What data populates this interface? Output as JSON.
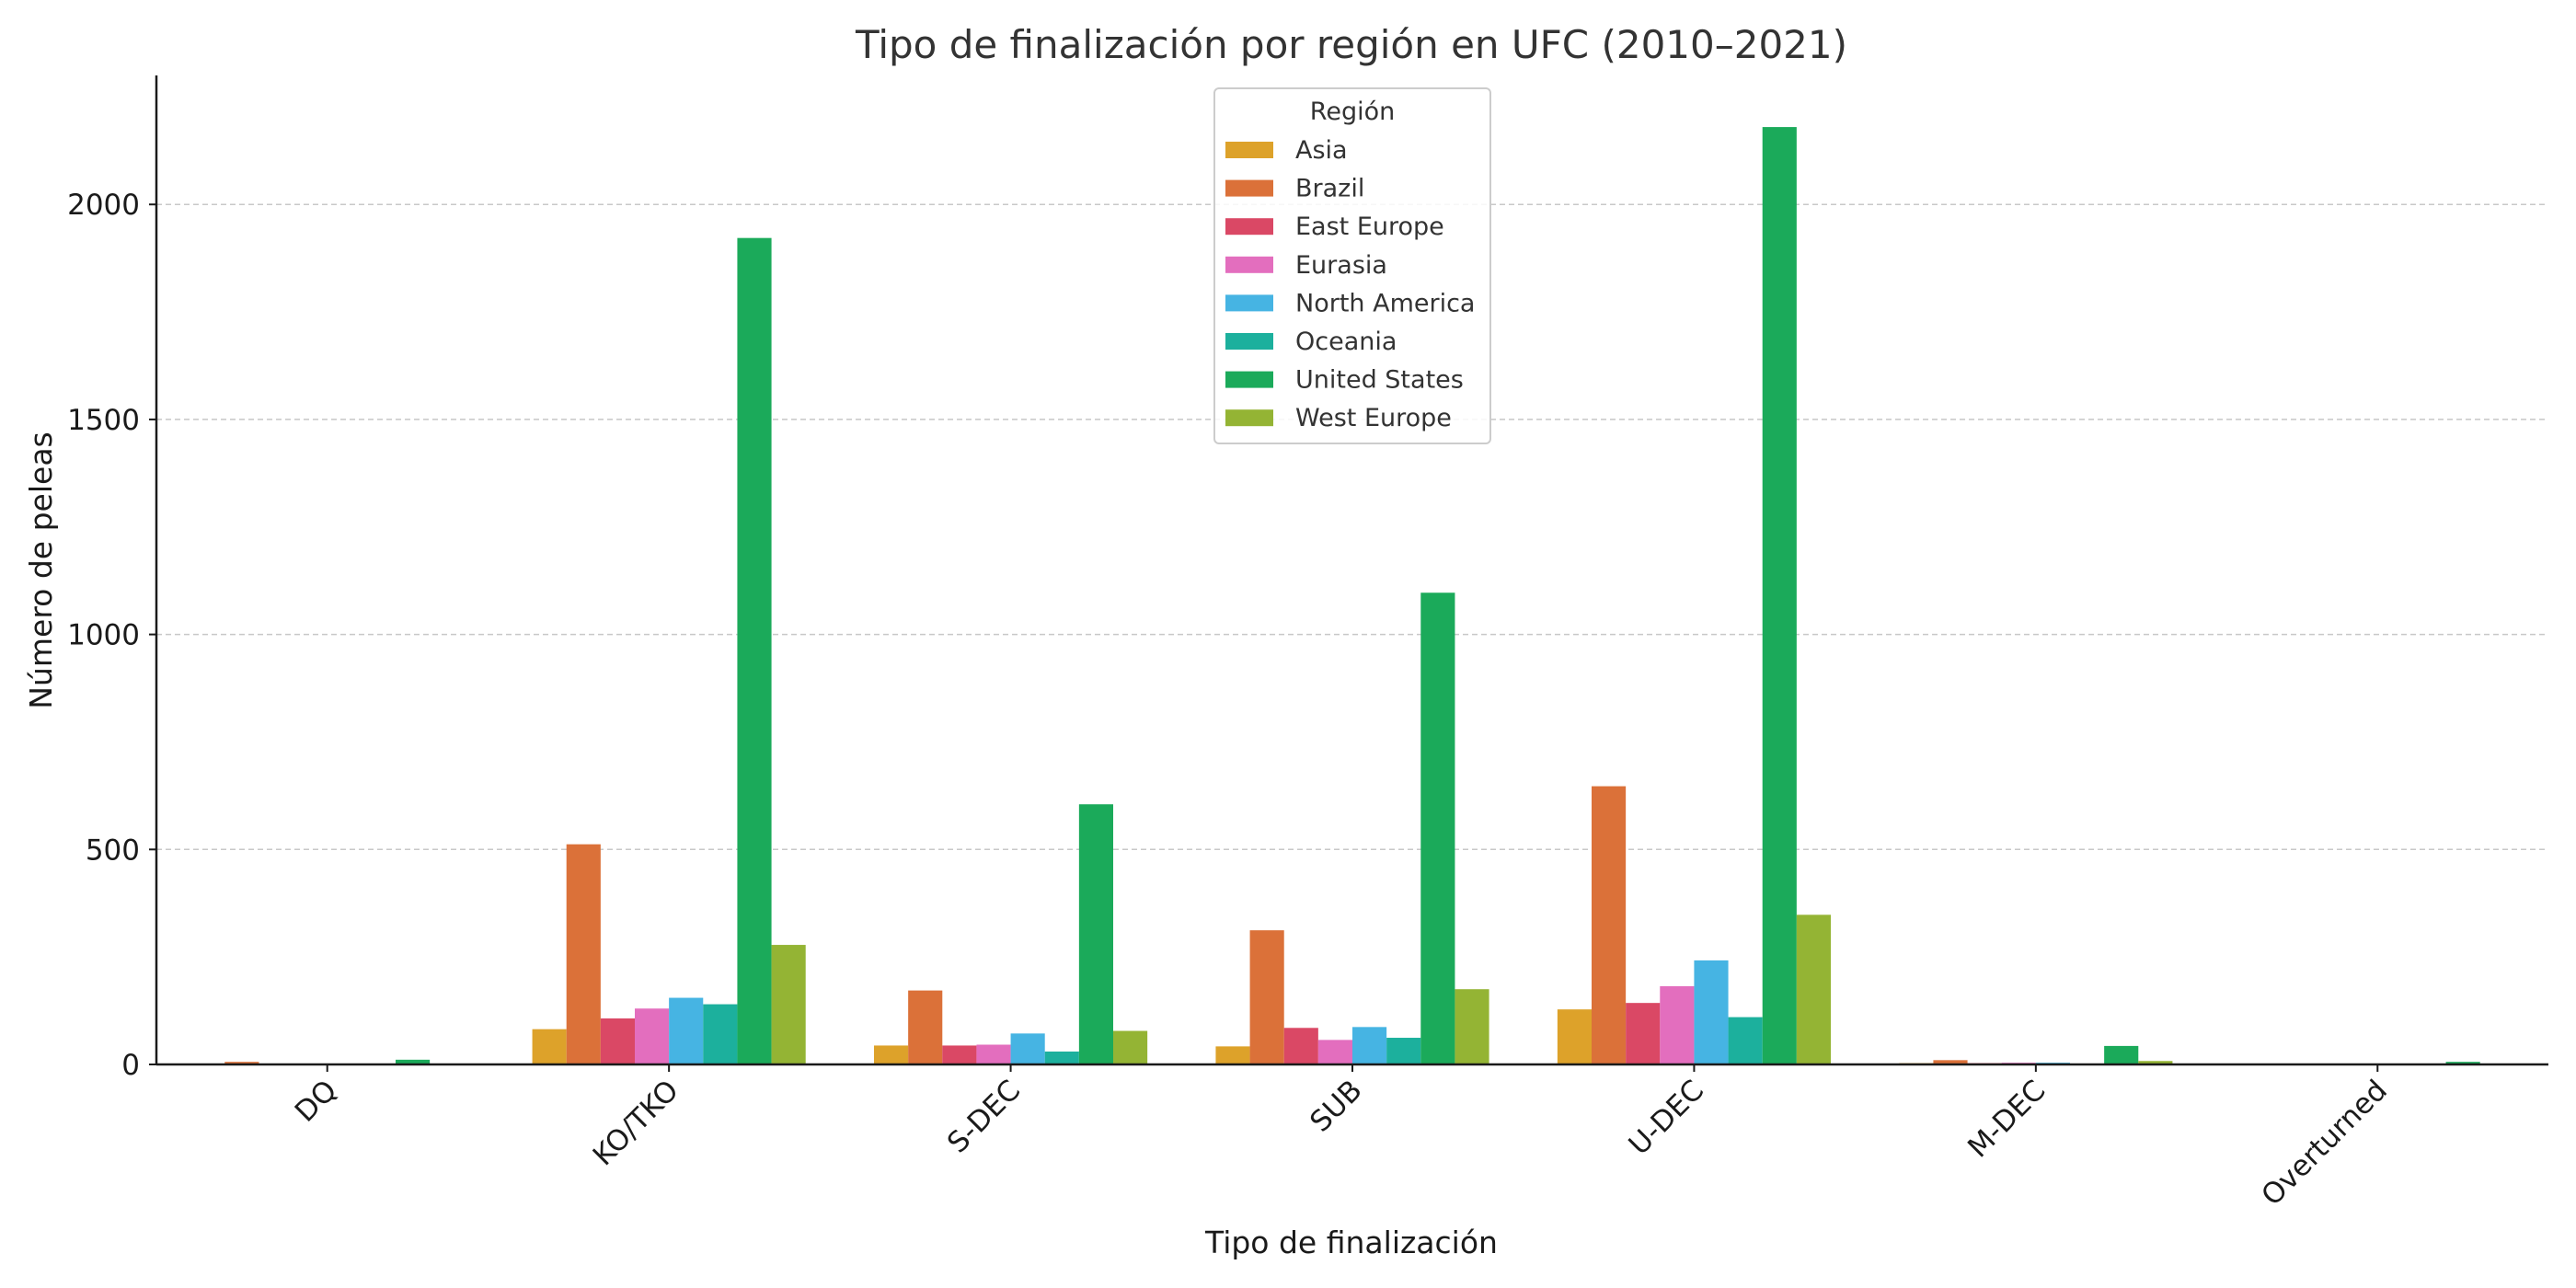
{
  "chart_data": {
    "type": "bar",
    "title": "Tipo de finalización por región en UFC (2010–2021)",
    "xlabel": "Tipo de finalización",
    "ylabel": "Número de peleas",
    "categories": [
      "DQ",
      "KO/TKO",
      "S-DEC",
      "SUB",
      "U-DEC",
      "M-DEC",
      "Overturned"
    ],
    "ylim": [
      0,
      2300
    ],
    "yticks": [
      0,
      500,
      1000,
      1500,
      2000
    ],
    "grid": "horizontal-dashed",
    "legend": {
      "title": "Región",
      "placement": "upper-center"
    },
    "series": [
      {
        "name": "Asia",
        "color": "#DDA22A",
        "values": [
          1,
          82,
          44,
          42,
          128,
          3,
          0
        ]
      },
      {
        "name": "Brazil",
        "color": "#DB7139",
        "values": [
          6,
          512,
          172,
          312,
          647,
          10,
          1
        ]
      },
      {
        "name": "East Europe",
        "color": "#DA4865",
        "values": [
          1,
          107,
          44,
          85,
          143,
          3,
          0
        ]
      },
      {
        "name": "Eurasia",
        "color": "#E36EBE",
        "values": [
          1,
          130,
          46,
          57,
          182,
          4,
          0
        ]
      },
      {
        "name": "North America",
        "color": "#46B4E3",
        "values": [
          1,
          155,
          72,
          87,
          242,
          4,
          1
        ]
      },
      {
        "name": "Oceania",
        "color": "#1CB09D",
        "values": [
          1,
          140,
          30,
          62,
          110,
          2,
          0
        ]
      },
      {
        "name": "United States",
        "color": "#1BAA5A",
        "values": [
          11,
          1922,
          605,
          1097,
          2180,
          43,
          6
        ]
      },
      {
        "name": "West Europe",
        "color": "#94B434",
        "values": [
          1,
          278,
          78,
          175,
          348,
          8,
          1
        ]
      }
    ]
  }
}
